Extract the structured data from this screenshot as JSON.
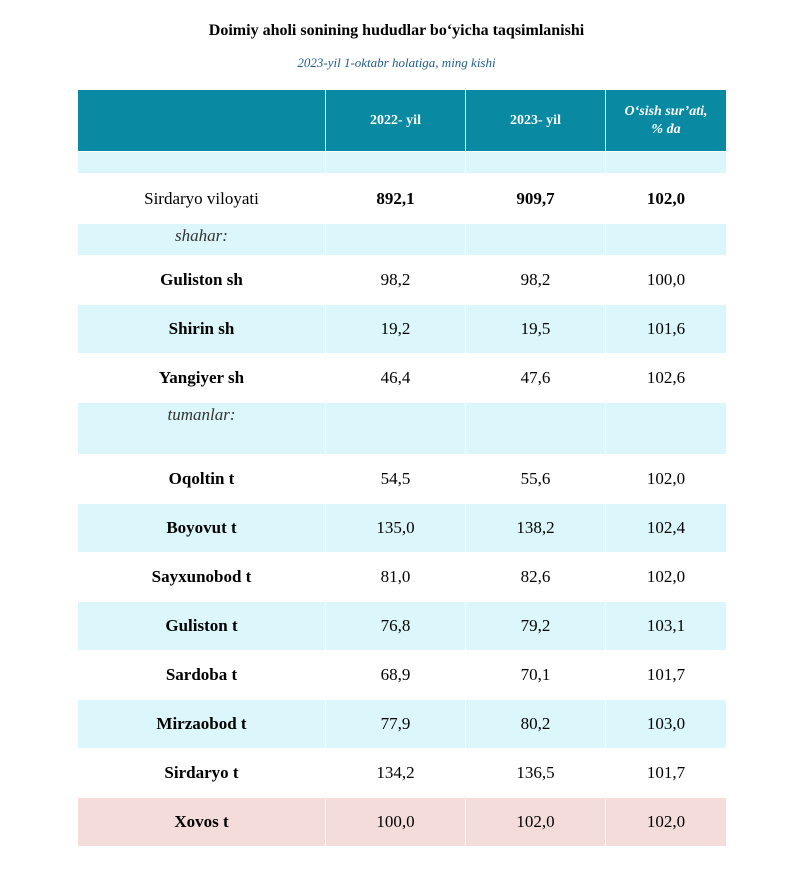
{
  "title": "Doimiy aholi sonining hududlar bo‘yicha taqsimlanishi",
  "subtitle": "2023-yil 1-oktabr holatiga, ming kishi",
  "table": {
    "headers": [
      "",
      "2022- yil",
      "2023- yil",
      "O‘sish sur’ati,\n% da"
    ],
    "total": {
      "name": "Sirdaryo viloyati",
      "y2022": "892,1",
      "y2023": "909,7",
      "growth": "102,0"
    },
    "section_cities": "shahar:",
    "cities": [
      {
        "name": "Guliston sh",
        "y2022": "98,2",
        "y2023": "98,2",
        "growth": "100,0"
      },
      {
        "name": "Shirin sh",
        "y2022": "19,2",
        "y2023": "19,5",
        "growth": "101,6"
      },
      {
        "name": "Yangiyer sh",
        "y2022": "46,4",
        "y2023": "47,6",
        "growth": "102,6"
      }
    ],
    "section_districts": "tumanlar:",
    "districts": [
      {
        "name": "Oqoltin t",
        "y2022": "54,5",
        "y2023": "55,6",
        "growth": "102,0"
      },
      {
        "name": "Boyovut t",
        "y2022": "135,0",
        "y2023": "138,2",
        "growth": "102,4"
      },
      {
        "name": "Sayxunobod t",
        "y2022": "81,0",
        "y2023": "82,6",
        "growth": "102,0"
      },
      {
        "name": "Guliston t",
        "y2022": "76,8",
        "y2023": "79,2",
        "growth": "103,1"
      },
      {
        "name": "Sardoba t",
        "y2022": "68,9",
        "y2023": "70,1",
        "growth": "101,7"
      },
      {
        "name": "Mirzaobod t",
        "y2022": "77,9",
        "y2023": "80,2",
        "growth": "103,0"
      },
      {
        "name": "Sirdaryo t",
        "y2022": "134,2",
        "y2023": "136,5",
        "growth": "101,7"
      },
      {
        "name": "Xovos t",
        "y2022": "100,0",
        "y2023": "102,0",
        "growth": "102,0"
      }
    ]
  },
  "colors": {
    "header": "#0a8aa2",
    "stripe": "#dbf7fb",
    "highlight": "#f3dcda"
  }
}
